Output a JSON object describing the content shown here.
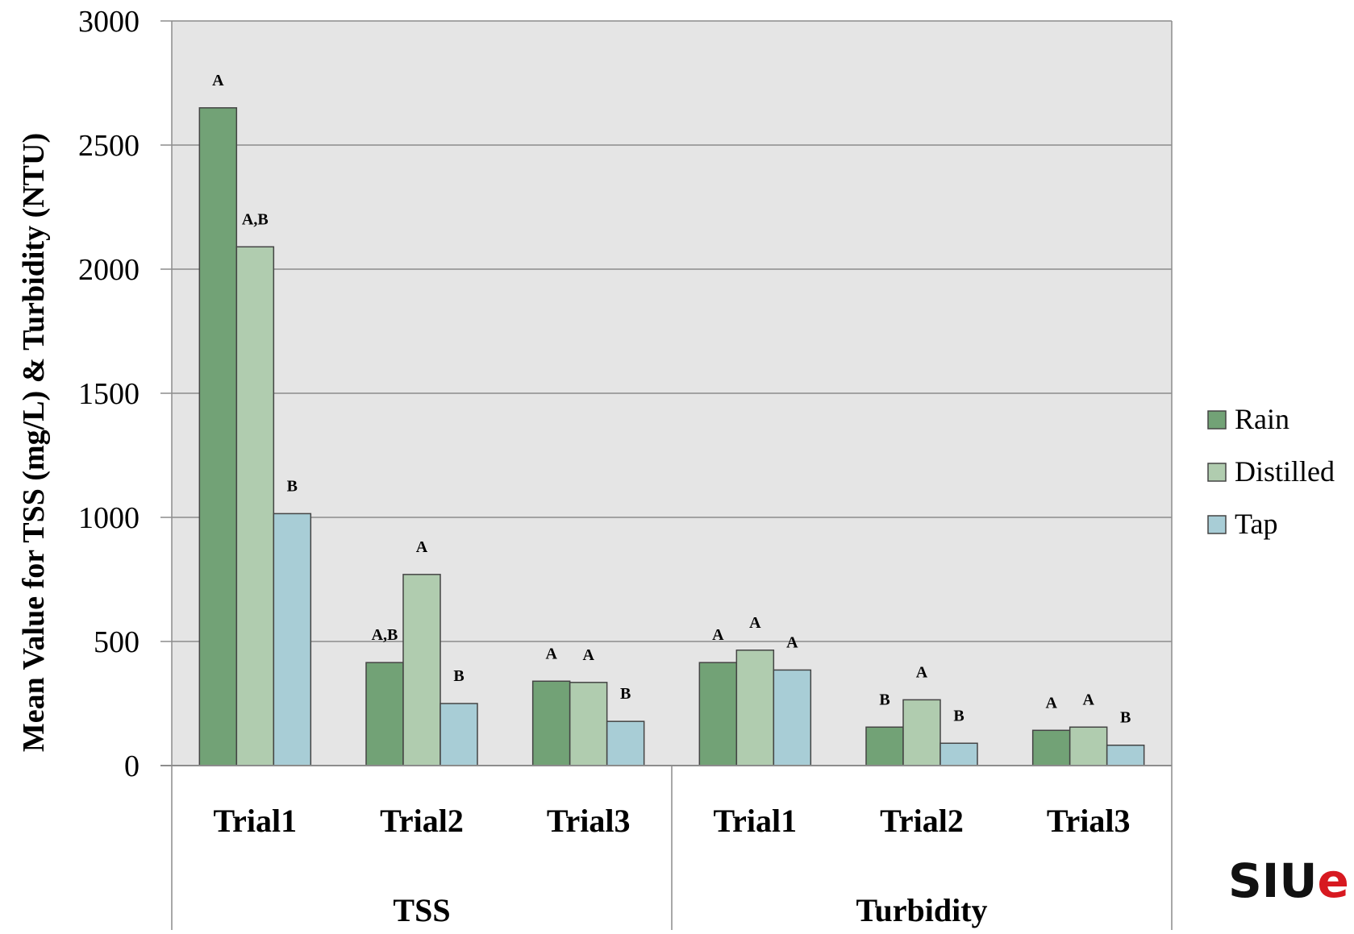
{
  "chart_data": {
    "type": "bar",
    "title": "",
    "ylabel": "Mean Value for TSS (mg/L)  & Turbidity (NTU)",
    "xlabel": "",
    "ylim": [
      0,
      3000
    ],
    "yticks": [
      0,
      500,
      1000,
      1500,
      2000,
      2500,
      3000
    ],
    "grid": true,
    "legend_position": "right",
    "groups": [
      {
        "label": "TSS",
        "categories": [
          "Trial1",
          "Trial2",
          "Trial3"
        ]
      },
      {
        "label": "Turbidity",
        "categories": [
          "Trial1",
          "Trial2",
          "Trial3"
        ]
      }
    ],
    "series": [
      {
        "name": "Rain",
        "color": "#72A276",
        "values": [
          2650,
          415,
          340,
          415,
          155,
          142
        ],
        "letters": [
          "A",
          "A,B",
          "A",
          "A",
          "B",
          "A"
        ]
      },
      {
        "name": "Distilled",
        "color": "#B0CCAF",
        "values": [
          2090,
          770,
          335,
          465,
          265,
          155
        ],
        "letters": [
          "A,B",
          "A",
          "A",
          "A",
          "A",
          "A"
        ]
      },
      {
        "name": "Tap",
        "color": "#A8CDD6",
        "values": [
          1015,
          250,
          178,
          385,
          90,
          82
        ],
        "letters": [
          "B",
          "B",
          "B",
          "A",
          "B",
          "B"
        ]
      }
    ]
  },
  "logo": {
    "text_dark": "SIU",
    "text_accent": "e",
    "color_dark": "#111111",
    "color_accent": "#D71920"
  },
  "colors": {
    "plot_background": "#E5E5E5",
    "gridline": "#8C8C8C",
    "bar_border": "#444444"
  }
}
